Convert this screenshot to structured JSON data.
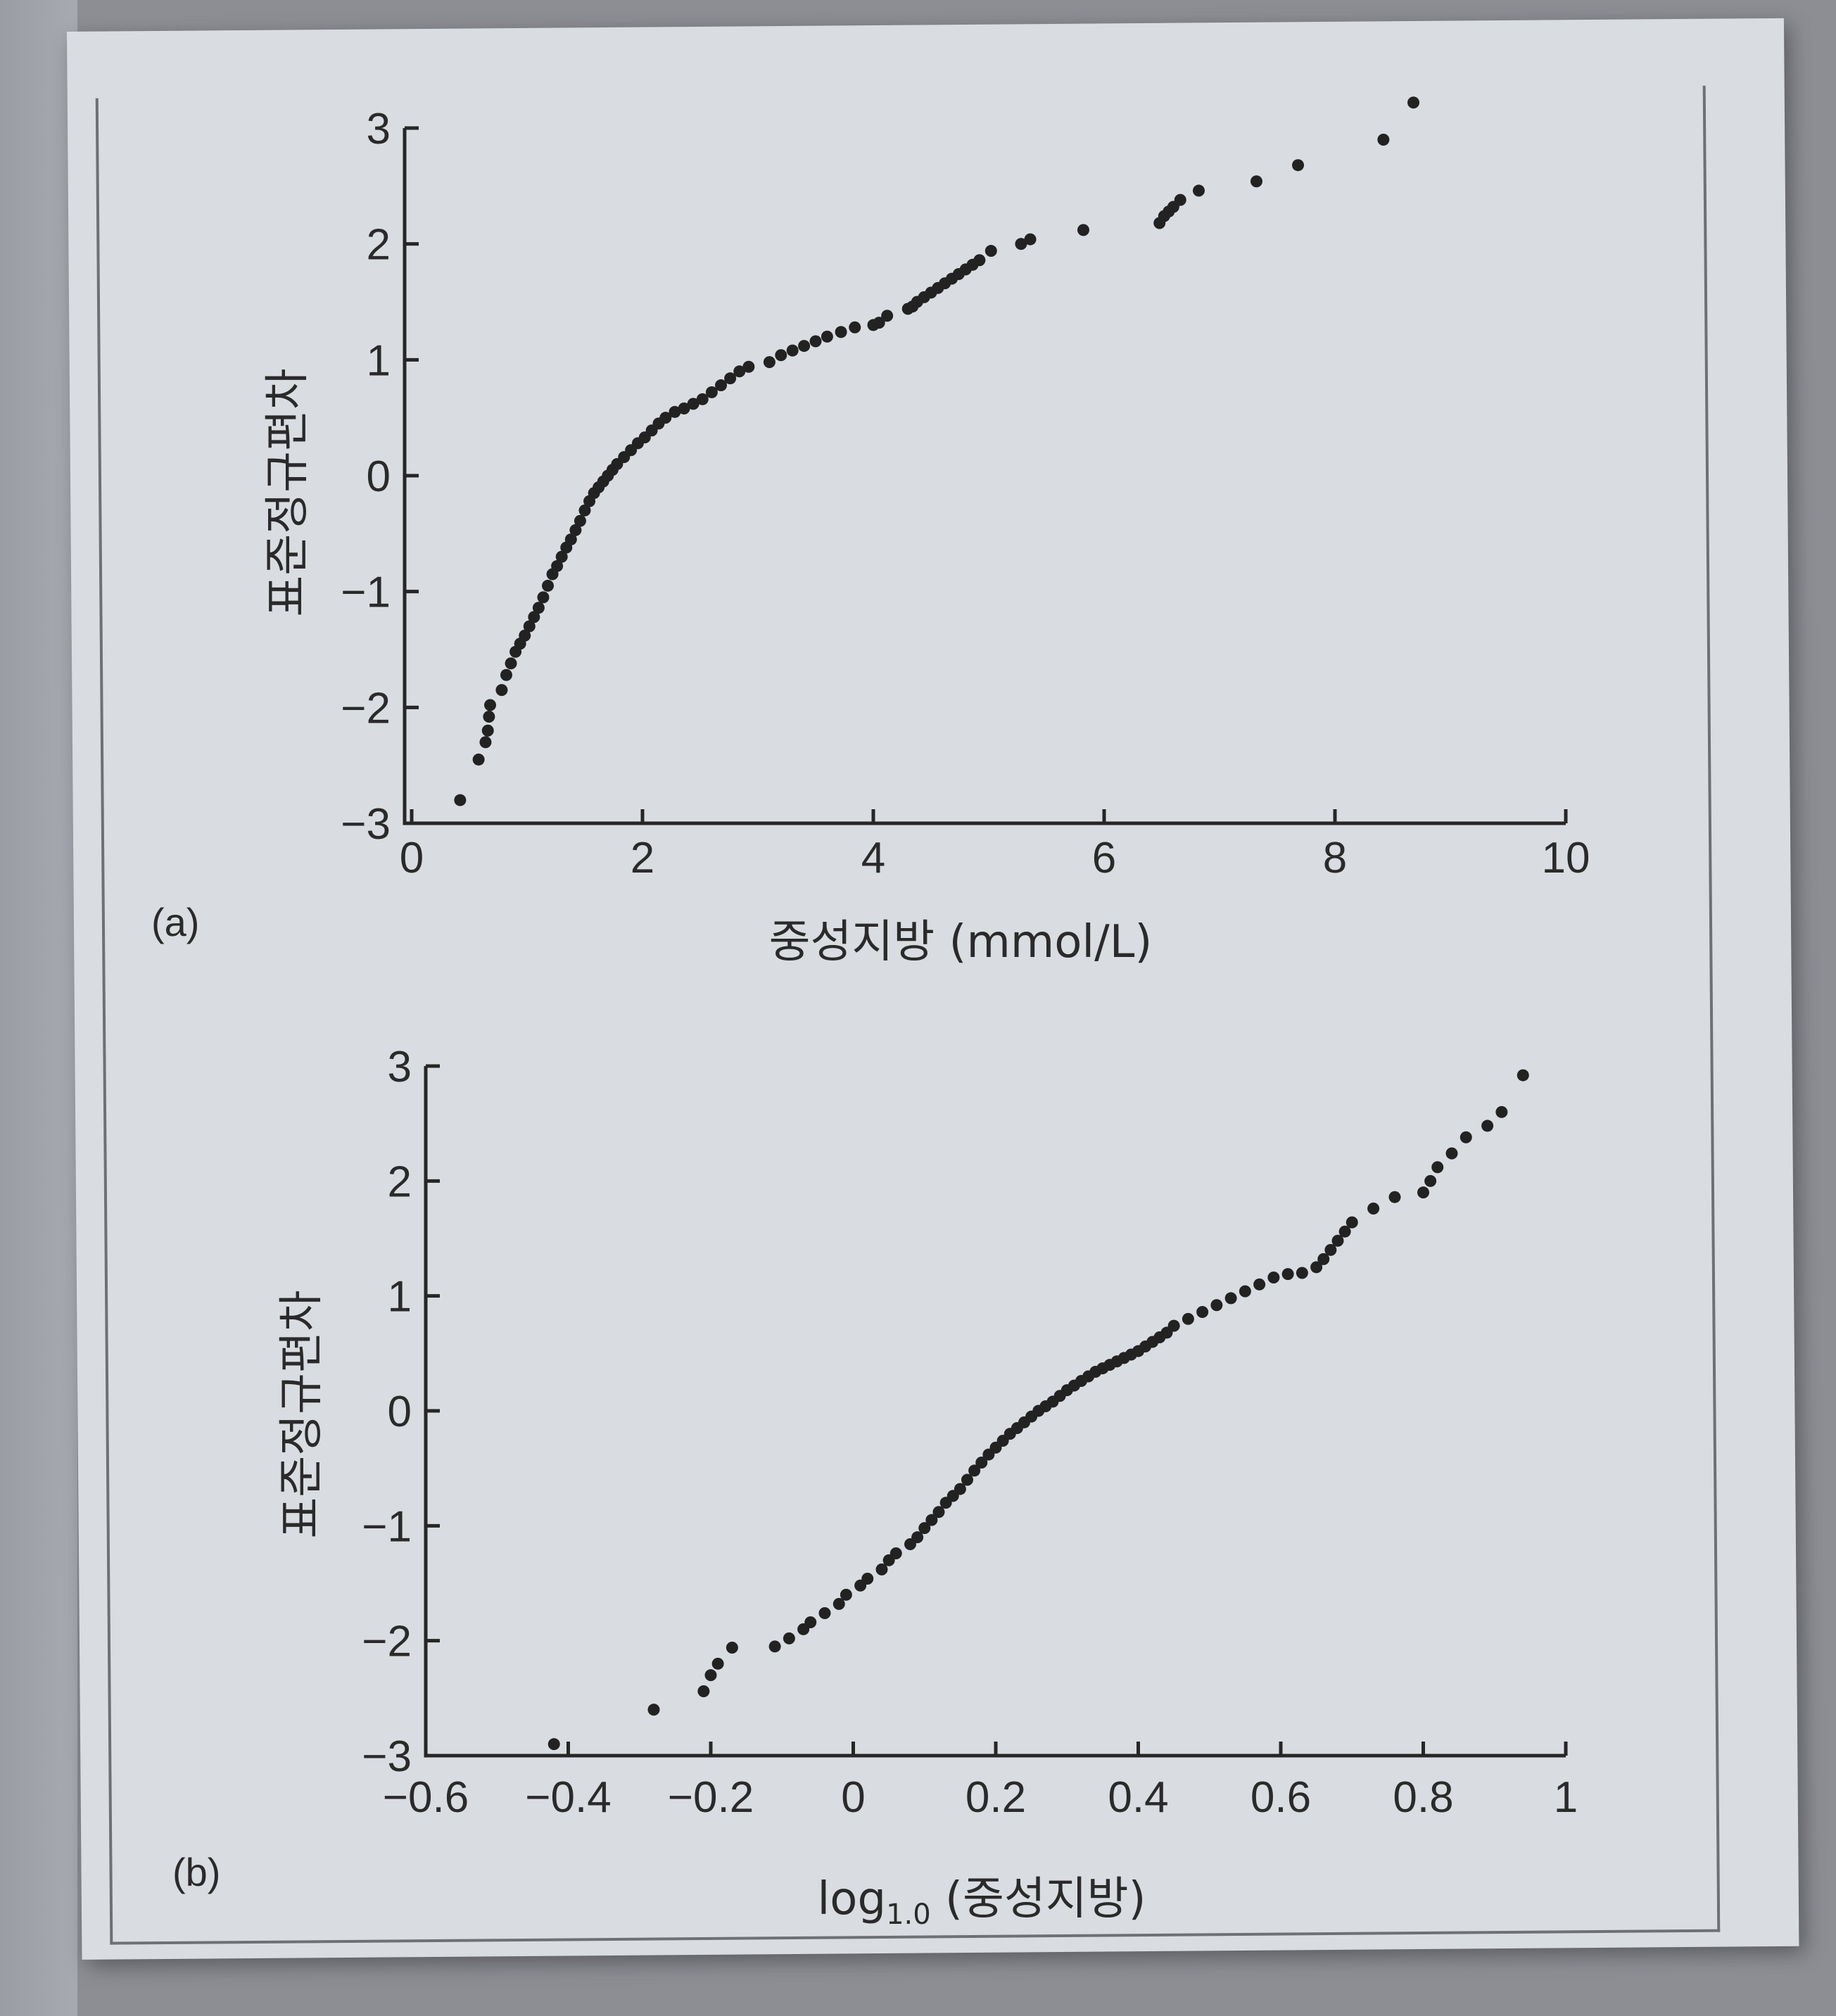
{
  "chart_data": [
    {
      "type": "scatter",
      "panel_label": "(a)",
      "xlabel": "중성지방 (mmol/L)",
      "ylabel": "표준정규편차",
      "xlim": [
        0,
        10
      ],
      "ylim": [
        -3,
        3
      ],
      "xticks": [
        "0",
        "2",
        "4",
        "6",
        "8",
        "10"
      ],
      "yticks": [
        "−3",
        "−2",
        "−1",
        "0",
        "1",
        "2",
        "3"
      ],
      "x": [
        0.42,
        0.58,
        0.64,
        0.66,
        0.67,
        0.68,
        0.78,
        0.82,
        0.86,
        0.9,
        0.94,
        0.98,
        1.02,
        1.06,
        1.1,
        1.14,
        1.18,
        1.22,
        1.26,
        1.3,
        1.34,
        1.38,
        1.42,
        1.46,
        1.5,
        1.54,
        1.58,
        1.62,
        1.66,
        1.7,
        1.74,
        1.78,
        1.84,
        1.9,
        1.96,
        2.02,
        2.08,
        2.14,
        2.2,
        2.28,
        2.36,
        2.44,
        2.52,
        2.6,
        2.68,
        2.76,
        2.84,
        2.92,
        3.1,
        3.2,
        3.3,
        3.4,
        3.5,
        3.6,
        3.72,
        3.84,
        4.0,
        4.05,
        4.12,
        4.3,
        4.34,
        4.38,
        4.44,
        4.5,
        4.56,
        4.62,
        4.68,
        4.74,
        4.8,
        4.86,
        4.92,
        5.02,
        5.28,
        5.36,
        5.82,
        6.48,
        6.52,
        6.56,
        6.6,
        6.66,
        6.82,
        7.32,
        7.68,
        8.42,
        8.68
      ],
      "y": [
        -2.8,
        -2.45,
        -2.3,
        -2.2,
        -2.08,
        -1.98,
        -1.85,
        -1.72,
        -1.62,
        -1.52,
        -1.45,
        -1.38,
        -1.3,
        -1.22,
        -1.14,
        -1.05,
        -0.95,
        -0.85,
        -0.78,
        -0.7,
        -0.62,
        -0.55,
        -0.47,
        -0.39,
        -0.3,
        -0.22,
        -0.15,
        -0.1,
        -0.05,
        0.0,
        0.05,
        0.1,
        0.16,
        0.22,
        0.28,
        0.33,
        0.39,
        0.45,
        0.5,
        0.55,
        0.58,
        0.62,
        0.66,
        0.72,
        0.78,
        0.84,
        0.9,
        0.94,
        0.98,
        1.04,
        1.08,
        1.12,
        1.16,
        1.2,
        1.24,
        1.28,
        1.3,
        1.32,
        1.38,
        1.44,
        1.46,
        1.5,
        1.54,
        1.58,
        1.62,
        1.66,
        1.7,
        1.74,
        1.78,
        1.82,
        1.86,
        1.94,
        2.0,
        2.04,
        2.12,
        2.18,
        2.24,
        2.28,
        2.32,
        2.38,
        2.46,
        2.54,
        2.68,
        2.9,
        3.22
      ]
    },
    {
      "type": "scatter",
      "panel_label": "(b)",
      "xlabel_prefix": "log",
      "xlabel_sub": "1.0",
      "xlabel_suffix": " (중성지방)",
      "ylabel": "표준정규편차",
      "xlim": [
        -0.6,
        1
      ],
      "ylim": [
        -3,
        3
      ],
      "xticks": [
        "−0.6",
        "−0.4",
        "−0.2",
        "0",
        "0.2",
        "0.4",
        "0.6",
        "0.8",
        "1"
      ],
      "yticks": [
        "−3",
        "−2",
        "−1",
        "0",
        "1",
        "2",
        "3"
      ],
      "x": [
        -0.42,
        -0.28,
        -0.21,
        -0.2,
        -0.19,
        -0.17,
        -0.11,
        -0.09,
        -0.07,
        -0.06,
        -0.04,
        -0.02,
        -0.01,
        0.01,
        0.02,
        0.04,
        0.05,
        0.06,
        0.08,
        0.09,
        0.1,
        0.11,
        0.12,
        0.13,
        0.14,
        0.15,
        0.16,
        0.17,
        0.18,
        0.19,
        0.2,
        0.21,
        0.22,
        0.23,
        0.24,
        0.25,
        0.26,
        0.27,
        0.28,
        0.29,
        0.3,
        0.31,
        0.32,
        0.33,
        0.34,
        0.35,
        0.36,
        0.37,
        0.38,
        0.39,
        0.4,
        0.41,
        0.42,
        0.43,
        0.44,
        0.45,
        0.47,
        0.49,
        0.51,
        0.53,
        0.55,
        0.57,
        0.59,
        0.61,
        0.63,
        0.65,
        0.66,
        0.67,
        0.68,
        0.69,
        0.7,
        0.73,
        0.76,
        0.8,
        0.81,
        0.82,
        0.84,
        0.86,
        0.89,
        0.91,
        0.94
      ],
      "y": [
        -2.9,
        -2.6,
        -2.44,
        -2.3,
        -2.2,
        -2.06,
        -2.05,
        -1.98,
        -1.9,
        -1.84,
        -1.76,
        -1.68,
        -1.6,
        -1.52,
        -1.46,
        -1.38,
        -1.3,
        -1.24,
        -1.16,
        -1.1,
        -1.02,
        -0.95,
        -0.88,
        -0.8,
        -0.74,
        -0.68,
        -0.6,
        -0.52,
        -0.45,
        -0.38,
        -0.32,
        -0.26,
        -0.2,
        -0.15,
        -0.1,
        -0.05,
        0.0,
        0.04,
        0.08,
        0.13,
        0.18,
        0.22,
        0.26,
        0.3,
        0.34,
        0.37,
        0.4,
        0.43,
        0.46,
        0.49,
        0.52,
        0.56,
        0.6,
        0.64,
        0.68,
        0.74,
        0.8,
        0.86,
        0.92,
        0.98,
        1.04,
        1.1,
        1.16,
        1.19,
        1.2,
        1.25,
        1.32,
        1.4,
        1.48,
        1.56,
        1.64,
        1.76,
        1.86,
        1.9,
        2.0,
        2.12,
        2.24,
        2.38,
        2.48,
        2.6,
        2.92
      ]
    }
  ]
}
